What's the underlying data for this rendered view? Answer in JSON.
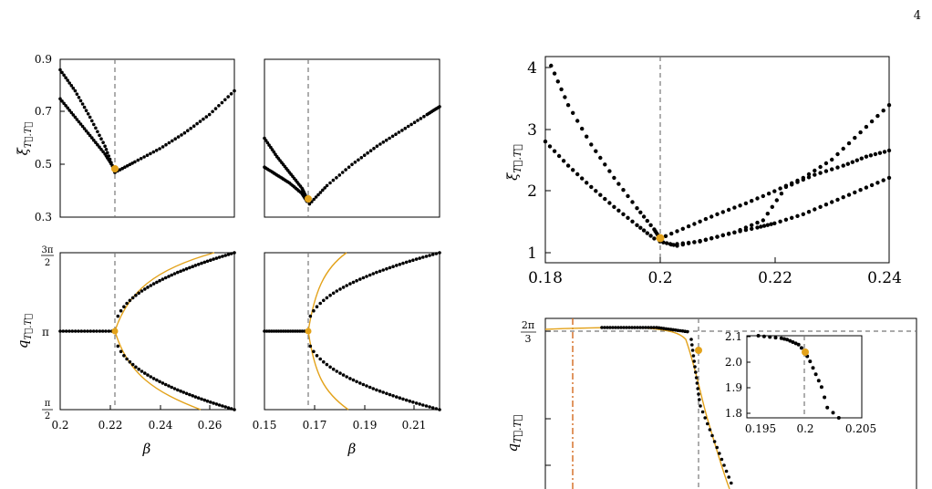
{
  "page_number": "4",
  "colors": {
    "points": "#000000",
    "highlight": "#e3a21a",
    "guide": "#777777",
    "dashdot": "#d2691e"
  },
  "chart_data": [
    {
      "id": "xi_left_a",
      "type": "scatter",
      "ylabel": "ξ_{T⃗.T⃗}",
      "xlim": [
        0.2,
        0.27
      ],
      "ylim": [
        0.3,
        0.9
      ],
      "yticks": [
        "0.3",
        "0.5",
        "0.7",
        "0.9"
      ],
      "vline_x": 0.222,
      "highlight": [
        0.222,
        0.48
      ],
      "series": [
        {
          "x": [
            0.2,
            0.206,
            0.212,
            0.218,
            0.222
          ],
          "y": [
            0.86,
            0.78,
            0.68,
            0.57,
            0.47
          ]
        },
        {
          "x": [
            0.2,
            0.206,
            0.212,
            0.218,
            0.222
          ],
          "y": [
            0.75,
            0.68,
            0.61,
            0.54,
            0.48
          ]
        },
        {
          "x": [
            0.222,
            0.23,
            0.24,
            0.25,
            0.26,
            0.27
          ],
          "y": [
            0.47,
            0.51,
            0.56,
            0.62,
            0.69,
            0.78
          ]
        }
      ]
    },
    {
      "id": "xi_left_b",
      "type": "scatter",
      "xlim": [
        0.15,
        0.22
      ],
      "ylim": [
        0.3,
        0.9
      ],
      "vline_x": 0.167,
      "highlight": [
        0.167,
        0.36
      ],
      "series": [
        {
          "x": [
            0.15,
            0.155,
            0.16,
            0.165,
            0.167
          ],
          "y": [
            0.6,
            0.53,
            0.47,
            0.41,
            0.37
          ]
        },
        {
          "x": [
            0.15,
            0.155,
            0.16,
            0.165,
            0.167
          ],
          "y": [
            0.49,
            0.46,
            0.43,
            0.39,
            0.36
          ]
        },
        {
          "x": [
            0.168,
            0.175,
            0.185,
            0.195,
            0.205,
            0.215,
            0.22
          ],
          "y": [
            0.35,
            0.42,
            0.5,
            0.57,
            0.63,
            0.69,
            0.72
          ]
        }
      ]
    },
    {
      "id": "q_left_a",
      "type": "scatter",
      "ylabel": "q_{T⃗.T⃗}",
      "xlabel": "β",
      "xlim": [
        0.2,
        0.27
      ],
      "ylim": [
        0.5,
        1.5
      ],
      "xticks": [
        "0.2",
        "0.22",
        "0.24",
        "0.26"
      ],
      "yticks": [
        "π/2",
        "π",
        "3π/2"
      ],
      "vline_x": 0.222,
      "highlight": [
        0.222,
        1.0
      ]
    },
    {
      "id": "q_left_b",
      "type": "scatter",
      "xlabel": "β",
      "xlim": [
        0.15,
        0.22
      ],
      "ylim": [
        0.5,
        1.5
      ],
      "xticks": [
        "0.15",
        "0.17",
        "0.19",
        "0.21"
      ],
      "vline_x": 0.167,
      "highlight": [
        0.167,
        1.0
      ]
    },
    {
      "id": "xi_right",
      "type": "scatter",
      "ylabel": "ξ_{T⃗.T⃗}",
      "xlim": [
        0.18,
        0.24
      ],
      "ylim": [
        0.8,
        4.2
      ],
      "xticks": [
        "0.18",
        "0.2",
        "0.22",
        "0.24"
      ],
      "yticks": [
        "1",
        "2",
        "3",
        "4"
      ],
      "vline_x": 0.2,
      "highlight": [
        0.2,
        1.25
      ],
      "series": [
        {
          "x": [
            0.181,
            0.184,
            0.188,
            0.192,
            0.196,
            0.199,
            0.2
          ],
          "y": [
            4.05,
            3.4,
            2.75,
            2.2,
            1.7,
            1.35,
            1.2
          ]
        },
        {
          "x": [
            0.18,
            0.184,
            0.188,
            0.192,
            0.196,
            0.199
          ],
          "y": [
            2.8,
            2.4,
            2.05,
            1.72,
            1.42,
            1.2
          ]
        },
        {
          "x": [
            0.2,
            0.205,
            0.21,
            0.215,
            0.22,
            0.225,
            0.23,
            0.235,
            0.24
          ],
          "y": [
            1.2,
            1.4,
            1.6,
            1.78,
            1.98,
            2.2,
            2.5,
            2.95,
            3.4
          ]
        },
        {
          "x": [
            0.2,
            0.203,
            0.208,
            0.213,
            0.218,
            0.222,
            0.227,
            0.232,
            0.236,
            0.24
          ],
          "y": [
            1.15,
            1.08,
            1.18,
            1.3,
            1.5,
            2.05,
            2.25,
            2.4,
            2.55,
            2.65
          ]
        },
        {
          "x": [
            0.202,
            0.207,
            0.212,
            0.217,
            0.22,
            0.225,
            0.23,
            0.235,
            0.24
          ],
          "y": [
            1.1,
            1.15,
            1.28,
            1.38,
            1.45,
            1.6,
            1.8,
            2.0,
            2.2
          ]
        }
      ]
    },
    {
      "id": "q_right",
      "type": "scatter",
      "ylabel": "q_{T⃗.T⃗}",
      "yticks": [
        "2π/3"
      ],
      "highlight_label": "orange point at dashed crossing",
      "series": [
        {
          "x": [
            0.0,
            0.2,
            0.4,
            0.55,
            0.65,
            0.72
          ],
          "y": [
            2.094,
            2.094,
            2.1,
            2.09,
            2.06,
            2.0
          ]
        }
      ]
    },
    {
      "id": "q_right_inset",
      "type": "scatter",
      "xlim": [
        0.195,
        0.205
      ],
      "ylim": [
        1.78,
        2.1
      ],
      "xticks": [
        "0.195",
        "0.2",
        "0.205"
      ],
      "yticks": [
        "1.8",
        "1.9",
        "2.0",
        "2.1"
      ],
      "vline_x": 0.2,
      "highlight": [
        0.2,
        2.03
      ],
      "series": [
        {
          "x": [
            0.196,
            0.197,
            0.198,
            0.1985,
            0.199,
            0.1995,
            0.2,
            0.2005,
            0.201,
            0.2015,
            0.202,
            0.203
          ],
          "y": [
            2.1,
            2.095,
            2.09,
            2.085,
            2.075,
            2.065,
            2.04,
            2.0,
            1.95,
            1.9,
            1.82,
            1.78
          ]
        }
      ]
    }
  ]
}
